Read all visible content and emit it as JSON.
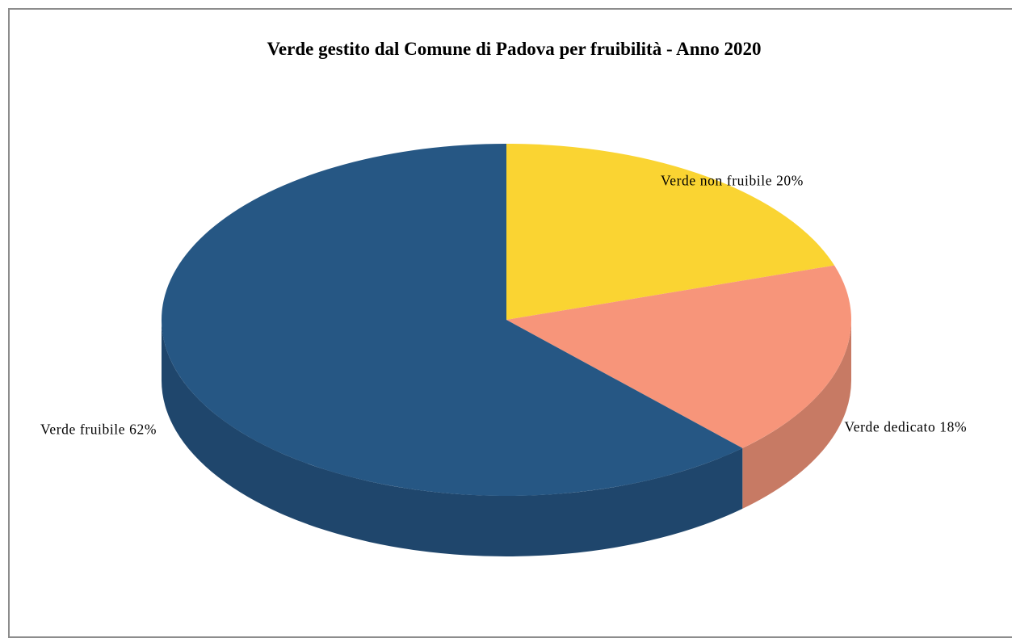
{
  "chart_data": {
    "type": "pie",
    "title": "Verde gestito dal Comune di Padova per fruibilità - Anno 2020",
    "slices": [
      {
        "label": "Verde non fruibile",
        "value": 20,
        "color": "#FAD432",
        "side_color": "#C8A928"
      },
      {
        "label": "Verde dedicato",
        "value": 18,
        "color": "#F7957A",
        "side_color": "#C77A64"
      },
      {
        "label": "Verde fruibile",
        "value": 62,
        "color": "#265784",
        "side_color": "#1F466C"
      }
    ],
    "label_format": "{label} {value}%",
    "style": "3d",
    "legend": "none"
  }
}
